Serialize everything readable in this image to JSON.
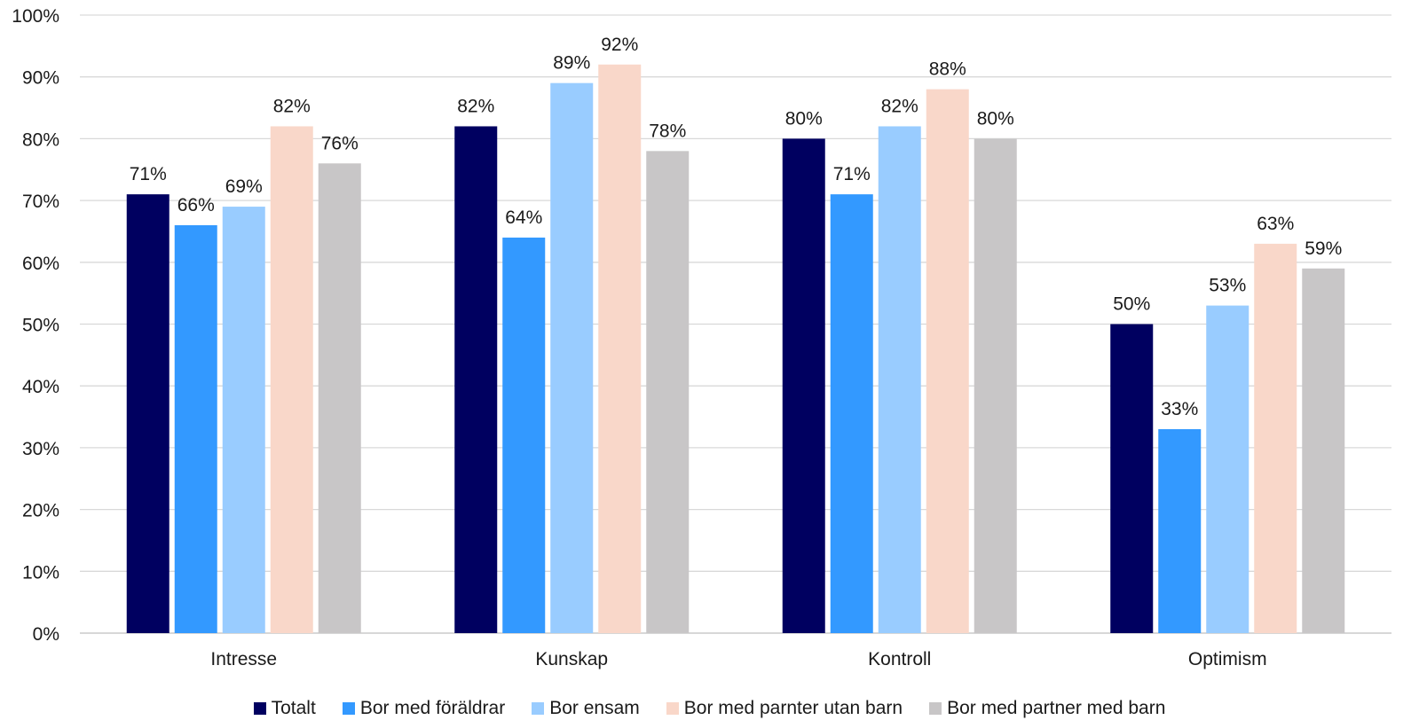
{
  "chart_data": {
    "type": "bar",
    "categories": [
      "Intresse",
      "Kunskap",
      "Kontroll",
      "Optimism"
    ],
    "series": [
      {
        "name": "Totalt",
        "color": "#000060",
        "values": [
          71,
          82,
          80,
          50
        ]
      },
      {
        "name": "Bor med föräldrar",
        "color": "#3399ff",
        "values": [
          66,
          64,
          71,
          33
        ]
      },
      {
        "name": "Bor ensam",
        "color": "#99ccff",
        "values": [
          69,
          89,
          82,
          53
        ]
      },
      {
        "name": "Bor med parnter utan barn",
        "color": "#f9d7c9",
        "values": [
          82,
          92,
          88,
          63
        ]
      },
      {
        "name": "Bor med partner med barn",
        "color": "#c8c6c7",
        "values": [
          76,
          78,
          80,
          59
        ]
      }
    ],
    "ylim": [
      0,
      100
    ],
    "yticks": [
      "0%",
      "10%",
      "20%",
      "30%",
      "40%",
      "50%",
      "60%",
      "70%",
      "80%",
      "90%",
      "100%"
    ],
    "value_suffix": "%",
    "grid": true,
    "legend_position": "bottom"
  }
}
